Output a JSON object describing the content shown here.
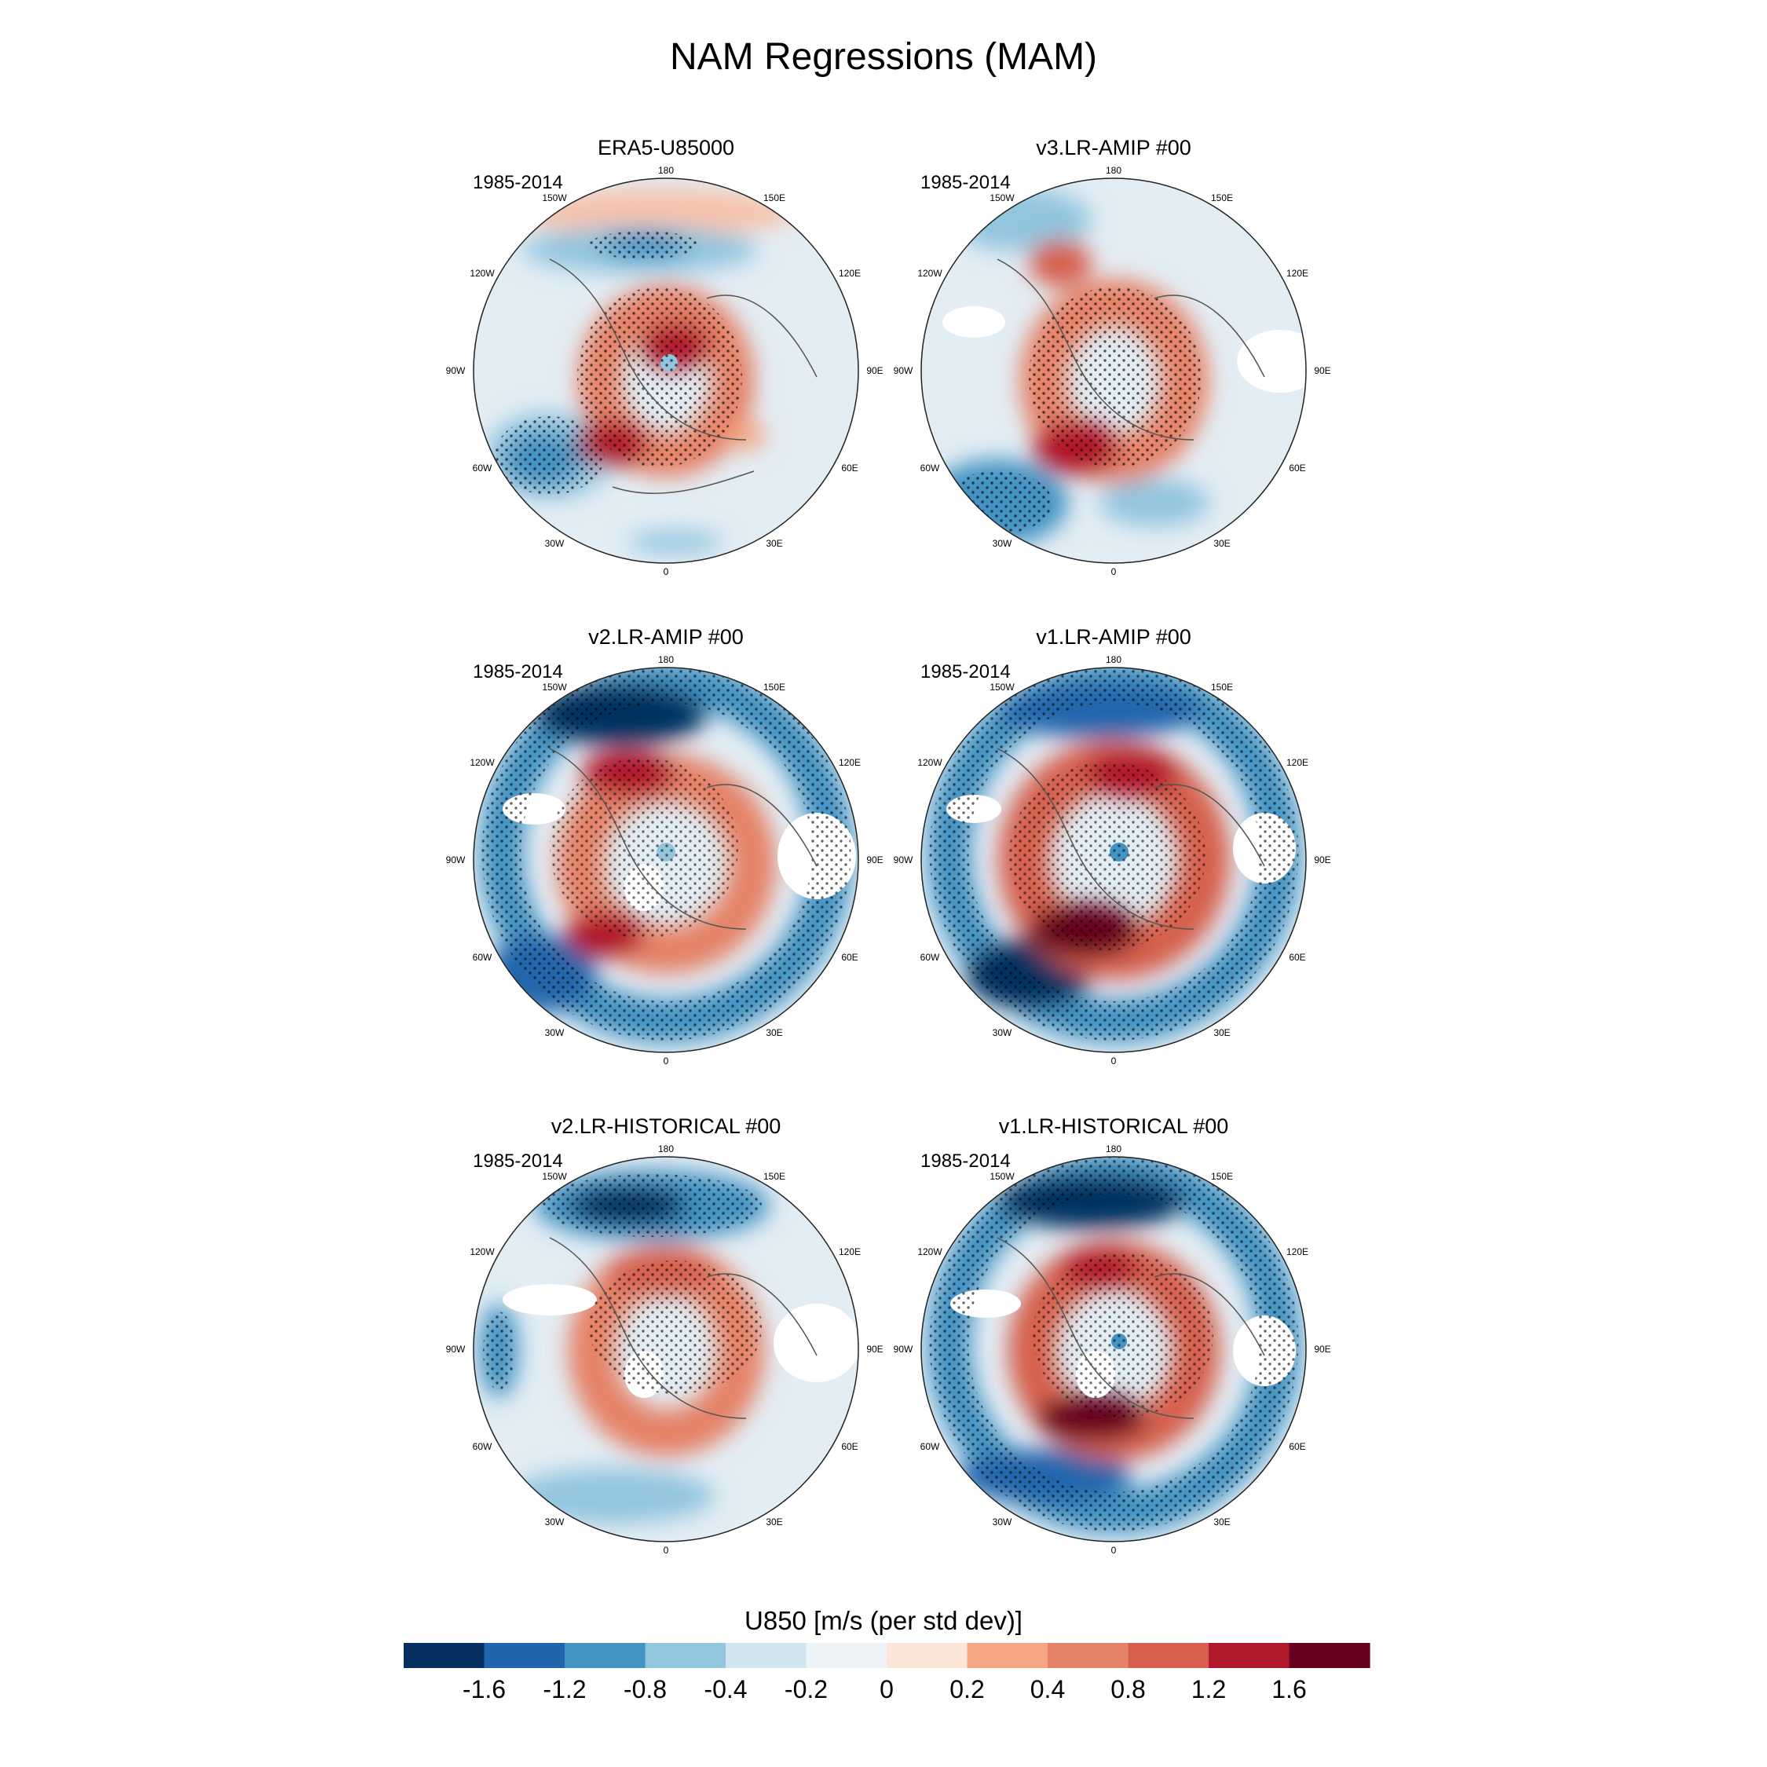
{
  "title": "NAM Regressions (MAM)",
  "panels": [
    {
      "title": "ERA5-U85000",
      "period": "1985-2014"
    },
    {
      "title": "v3.LR-AMIP  #00",
      "period": "1985-2014"
    },
    {
      "title": "v2.LR-AMIP  #00",
      "period": "1985-2014"
    },
    {
      "title": "v1.LR-AMIP  #00",
      "period": "1985-2014"
    },
    {
      "title": "v2.LR-HISTORICAL  #00",
      "period": "1985-2014"
    },
    {
      "title": "v1.LR-HISTORICAL  #00",
      "period": "1985-2014"
    }
  ],
  "longitude_labels": [
    "180",
    "150E",
    "120E",
    "90E",
    "60E",
    "30E",
    "0",
    "30W",
    "60W",
    "90W",
    "120W",
    "150W"
  ],
  "colorbar": {
    "label": "U850 [m/s (per std dev)]",
    "tick_labels": [
      "-1.6",
      "-1.2",
      "-0.8",
      "-0.4",
      "-0.2",
      "0",
      "0.2",
      "0.4",
      "0.8",
      "1.2",
      "1.6"
    ],
    "colors": [
      "#053061",
      "#2166ac",
      "#4393c3",
      "#92c5de",
      "#d1e5f0",
      "#eef3f7",
      "#fbe5d9",
      "#f4a582",
      "#e58268",
      "#d6604d",
      "#b2182b",
      "#67001f"
    ]
  },
  "colors": {
    "land_outline": "#555555",
    "stipple": "#000000",
    "missing": "#ffffff"
  }
}
